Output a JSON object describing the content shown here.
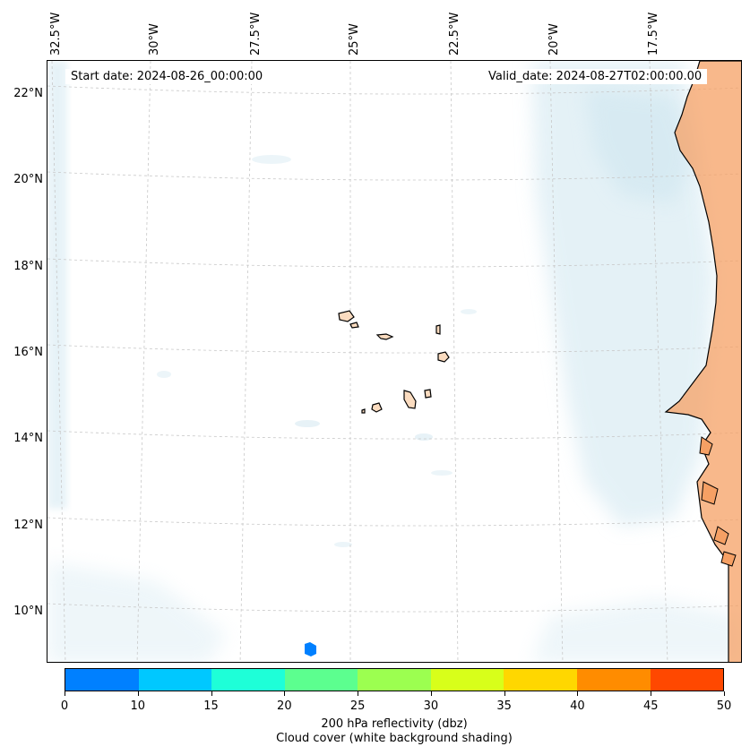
{
  "header": {
    "start_date": "Start date: 2024-08-26_00:00:00",
    "valid_date": "Valid_date: 2024-08-27T02:00:00.00"
  },
  "axes": {
    "lon_labels": [
      "32.5°W",
      "30°W",
      "27.5°W",
      "25°W",
      "22.5°W",
      "20°W",
      "17.5°W"
    ],
    "lat_labels": [
      "22°N",
      "20°N",
      "18°N",
      "16°N",
      "14°N",
      "12°N",
      "10°N"
    ]
  },
  "colorbar": {
    "ticks": [
      "0",
      "10",
      "15",
      "20",
      "25",
      "30",
      "35",
      "40",
      "45",
      "50"
    ],
    "colors": [
      "#0080ff",
      "#00c8ff",
      "#1effd8",
      "#5cff8f",
      "#9cff50",
      "#d8ff1a",
      "#ffd700",
      "#ff8c00",
      "#ff4800"
    ],
    "label": "200 hPa reflectivity (dbz)",
    "sublabel": "Cloud cover (white background shading)"
  },
  "colors": {
    "land": "#f6a064",
    "cloud": "#cfe6f0",
    "grid": "#c8c8c8"
  }
}
